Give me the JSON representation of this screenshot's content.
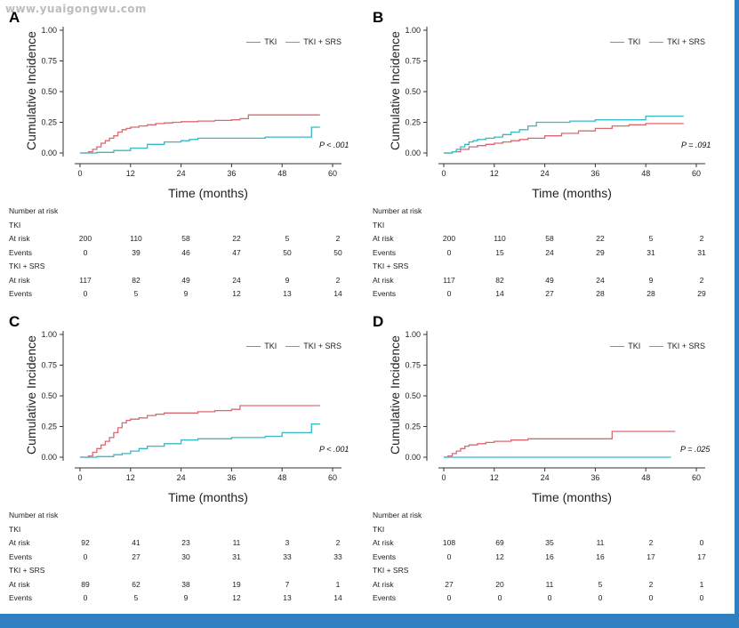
{
  "watermark": "www.yuaigongwu.com",
  "colors": {
    "tki": "#d9696e",
    "tki_srs": "#35b9c5",
    "frame": "#2f7fc1",
    "axis": "#333333"
  },
  "chart_data": [
    {
      "panel": "A",
      "type": "line",
      "step": true,
      "ylabel": "Cumulative Incidence",
      "xlabel": "Time (months)",
      "xlim": [
        0,
        60
      ],
      "ylim": [
        0,
        1
      ],
      "xticks": [
        0,
        12,
        24,
        36,
        48,
        60
      ],
      "yticks": [
        0,
        0.25,
        0.5,
        0.75,
        1.0
      ],
      "ytick_labels": [
        "0.00",
        "0.25",
        "0.50",
        "0.75",
        "1.00"
      ],
      "legend": "top-right",
      "pvalue": "P < .001",
      "series": [
        {
          "name": "TKI",
          "x": [
            0,
            2,
            3,
            4,
            5,
            6,
            7,
            8,
            9,
            10,
            11,
            12,
            14,
            16,
            18,
            20,
            22,
            24,
            28,
            32,
            36,
            38,
            40,
            42,
            46,
            50,
            57
          ],
          "y": [
            0,
            0.01,
            0.03,
            0.05,
            0.08,
            0.1,
            0.12,
            0.14,
            0.17,
            0.19,
            0.2,
            0.21,
            0.22,
            0.23,
            0.24,
            0.245,
            0.25,
            0.255,
            0.26,
            0.265,
            0.27,
            0.28,
            0.31,
            0.31,
            0.31,
            0.31,
            0.31
          ]
        },
        {
          "name": "TKI + SRS",
          "x": [
            0,
            4,
            8,
            12,
            16,
            20,
            24,
            26,
            28,
            36,
            44,
            55,
            57
          ],
          "y": [
            0,
            0.005,
            0.02,
            0.04,
            0.07,
            0.09,
            0.1,
            0.11,
            0.12,
            0.12,
            0.13,
            0.21,
            0.21
          ]
        }
      ],
      "risk_table": {
        "title": "Number at risk",
        "row_labels": [
          "At risk",
          "Events"
        ],
        "groups": [
          {
            "name": "TKI",
            "at_risk": [
              "200",
              "110",
              "58",
              "22",
              "5",
              "2"
            ],
            "events": [
              "0",
              "39",
              "46",
              "47",
              "50",
              "50"
            ]
          },
          {
            "name": "TKI + SRS",
            "at_risk": [
              "117",
              "82",
              "49",
              "24",
              "9",
              "2"
            ],
            "events": [
              "0",
              "5",
              "9",
              "12",
              "13",
              "14"
            ]
          }
        ]
      }
    },
    {
      "panel": "B",
      "type": "line",
      "step": true,
      "ylabel": "Cumulative Incidence",
      "xlabel": "Time (months)",
      "xlim": [
        0,
        60
      ],
      "ylim": [
        0,
        1
      ],
      "xticks": [
        0,
        12,
        24,
        36,
        48,
        60
      ],
      "yticks": [
        0,
        0.25,
        0.5,
        0.75,
        1.0
      ],
      "ytick_labels": [
        "0.00",
        "0.25",
        "0.50",
        "0.75",
        "1.00"
      ],
      "legend": "top-right",
      "pvalue": "P = .091",
      "series": [
        {
          "name": "TKI",
          "x": [
            0,
            2,
            4,
            6,
            8,
            10,
            12,
            14,
            16,
            18,
            20,
            24,
            28,
            32,
            36,
            40,
            44,
            48,
            57
          ],
          "y": [
            0,
            0.01,
            0.03,
            0.05,
            0.06,
            0.07,
            0.08,
            0.09,
            0.1,
            0.11,
            0.12,
            0.14,
            0.16,
            0.18,
            0.2,
            0.22,
            0.23,
            0.24,
            0.24
          ]
        },
        {
          "name": "TKI + SRS",
          "x": [
            0,
            2,
            3,
            4,
            5,
            6,
            7,
            8,
            10,
            12,
            14,
            16,
            18,
            20,
            22,
            24,
            30,
            36,
            48,
            57
          ],
          "y": [
            0,
            0.01,
            0.03,
            0.05,
            0.07,
            0.09,
            0.1,
            0.11,
            0.12,
            0.13,
            0.15,
            0.17,
            0.19,
            0.22,
            0.25,
            0.25,
            0.26,
            0.27,
            0.3,
            0.3
          ]
        }
      ],
      "risk_table": {
        "title": "Number at risk",
        "row_labels": [
          "At risk",
          "Events"
        ],
        "groups": [
          {
            "name": "TKI",
            "at_risk": [
              "200",
              "110",
              "58",
              "22",
              "5",
              "2"
            ],
            "events": [
              "0",
              "15",
              "24",
              "29",
              "31",
              "31"
            ]
          },
          {
            "name": "TKI + SRS",
            "at_risk": [
              "117",
              "82",
              "49",
              "24",
              "9",
              "2"
            ],
            "events": [
              "0",
              "14",
              "27",
              "28",
              "28",
              "29"
            ]
          }
        ]
      }
    },
    {
      "panel": "C",
      "type": "line",
      "step": true,
      "ylabel": "Cumulative Incidence",
      "xlabel": "Time (months)",
      "xlim": [
        0,
        60
      ],
      "ylim": [
        0,
        1
      ],
      "xticks": [
        0,
        12,
        24,
        36,
        48,
        60
      ],
      "yticks": [
        0,
        0.25,
        0.5,
        0.75,
        1.0
      ],
      "ytick_labels": [
        "0.00",
        "0.25",
        "0.50",
        "0.75",
        "1.00"
      ],
      "legend": "top-right",
      "pvalue": "P < .001",
      "series": [
        {
          "name": "TKI",
          "x": [
            0,
            2,
            3,
            4,
            5,
            6,
            7,
            8,
            9,
            10,
            11,
            12,
            14,
            16,
            18,
            20,
            24,
            28,
            32,
            36,
            38,
            57
          ],
          "y": [
            0,
            0.01,
            0.04,
            0.07,
            0.1,
            0.13,
            0.16,
            0.2,
            0.24,
            0.28,
            0.3,
            0.31,
            0.32,
            0.34,
            0.35,
            0.36,
            0.36,
            0.37,
            0.38,
            0.39,
            0.42,
            0.42
          ]
        },
        {
          "name": "TKI + SRS",
          "x": [
            0,
            4,
            8,
            10,
            12,
            14,
            16,
            20,
            24,
            28,
            36,
            44,
            48,
            55,
            57
          ],
          "y": [
            0,
            0.005,
            0.02,
            0.03,
            0.05,
            0.07,
            0.09,
            0.11,
            0.14,
            0.15,
            0.16,
            0.17,
            0.2,
            0.27,
            0.27
          ]
        }
      ],
      "risk_table": {
        "title": "Number at risk",
        "row_labels": [
          "At risk",
          "Events"
        ],
        "groups": [
          {
            "name": "TKI",
            "at_risk": [
              "92",
              "41",
              "23",
              "11",
              "3",
              "2"
            ],
            "events": [
              "0",
              "27",
              "30",
              "31",
              "33",
              "33"
            ]
          },
          {
            "name": "TKI + SRS",
            "at_risk": [
              "89",
              "62",
              "38",
              "19",
              "7",
              "1"
            ],
            "events": [
              "0",
              "5",
              "9",
              "12",
              "13",
              "14"
            ]
          }
        ]
      }
    },
    {
      "panel": "D",
      "type": "line",
      "step": true,
      "ylabel": "Cumulative Incidence",
      "xlabel": "Time (months)",
      "xlim": [
        0,
        60
      ],
      "ylim": [
        0,
        1
      ],
      "xticks": [
        0,
        12,
        24,
        36,
        48,
        60
      ],
      "yticks": [
        0,
        0.25,
        0.5,
        0.75,
        1.0
      ],
      "ytick_labels": [
        "0.00",
        "0.25",
        "0.50",
        "0.75",
        "1.00"
      ],
      "legend": "top-right",
      "pvalue": "P = .025",
      "series": [
        {
          "name": "TKI",
          "x": [
            0,
            1,
            2,
            3,
            4,
            5,
            6,
            8,
            10,
            12,
            16,
            20,
            24,
            40,
            55
          ],
          "y": [
            0,
            0.01,
            0.03,
            0.05,
            0.07,
            0.09,
            0.1,
            0.11,
            0.12,
            0.13,
            0.14,
            0.15,
            0.15,
            0.21,
            0.21
          ]
        },
        {
          "name": "TKI + SRS",
          "x": [
            0,
            54
          ],
          "y": [
            0,
            0
          ]
        }
      ],
      "risk_table": {
        "title": "Number at risk",
        "row_labels": [
          "At risk",
          "Events"
        ],
        "groups": [
          {
            "name": "TKI",
            "at_risk": [
              "108",
              "69",
              "35",
              "11",
              "2",
              "0"
            ],
            "events": [
              "0",
              "12",
              "16",
              "16",
              "17",
              "17"
            ]
          },
          {
            "name": "TKI + SRS",
            "at_risk": [
              "27",
              "20",
              "11",
              "5",
              "2",
              "1"
            ],
            "events": [
              "0",
              "0",
              "0",
              "0",
              "0",
              "0"
            ]
          }
        ]
      }
    }
  ]
}
